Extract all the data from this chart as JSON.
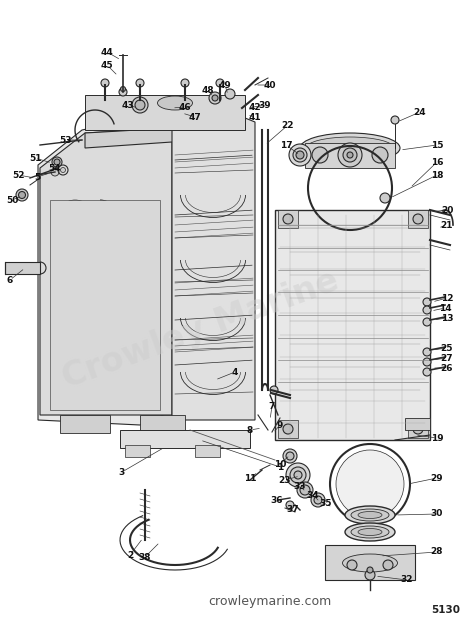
{
  "bg_color": "#ffffff",
  "line_color": "#2a2a2a",
  "watermark": "Crowley Marine",
  "watermark2": "crowleymarine.com",
  "diagram_code": "5130",
  "label_fontsize": 6.5,
  "text_color": "#111111"
}
